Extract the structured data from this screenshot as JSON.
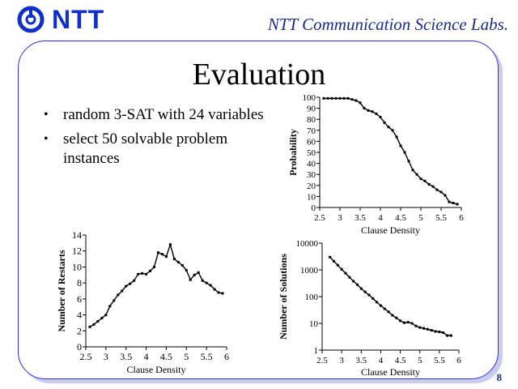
{
  "header": {
    "logo_text": "NTT",
    "lab_name": "NTT Communication Science Labs."
  },
  "slide": {
    "title": "Evaluation",
    "bullets": [
      "random 3-SAT with 24 variables",
      "select 50 solvable problem instances"
    ],
    "page_number": "8"
  },
  "colors": {
    "logo": "#1030c8",
    "frame": "#2b2ee8",
    "shadow": "#c9ccee",
    "series": "#000000"
  },
  "chart_data": [
    {
      "type": "line",
      "xlabel": "Clause Density",
      "ylabel": "Probability",
      "xlim": [
        2.5,
        6
      ],
      "ylim": [
        0,
        100
      ],
      "xticks": [
        "2.5",
        "3",
        "3.5",
        "4",
        "4.5",
        "5",
        "5.5",
        "6"
      ],
      "yticks": [
        "0",
        "10",
        "20",
        "30",
        "40",
        "50",
        "60",
        "70",
        "80",
        "90",
        "100"
      ],
      "grid": false,
      "series": [
        {
          "x": [
            2.6,
            2.7,
            2.8,
            2.9,
            3.0,
            3.1,
            3.2,
            3.3,
            3.4,
            3.5,
            3.6,
            3.7,
            3.8,
            3.9,
            4.0,
            4.1,
            4.2,
            4.3,
            4.4,
            4.5,
            4.6,
            4.7,
            4.8,
            4.9,
            5.0,
            5.1,
            5.2,
            5.3,
            5.4,
            5.5,
            5.6,
            5.7,
            5.8,
            5.9
          ],
          "values": [
            99,
            99,
            99,
            99,
            99,
            99,
            99,
            98,
            97,
            95,
            90,
            88,
            87,
            85,
            82,
            77,
            73,
            70,
            64,
            56,
            50,
            42,
            34,
            30,
            26,
            24,
            21,
            19,
            16,
            14,
            11,
            5,
            4,
            3
          ]
        }
      ]
    },
    {
      "type": "line",
      "xlabel": "Clause Density",
      "ylabel": "Number of Restarts",
      "xlim": [
        2.5,
        6
      ],
      "ylim": [
        0,
        14
      ],
      "xticks": [
        "2.5",
        "3",
        "3.5",
        "4",
        "4.5",
        "5",
        "5.5",
        "6"
      ],
      "yticks": [
        "0",
        "2",
        "4",
        "6",
        "8",
        "10",
        "12",
        "14"
      ],
      "grid": false,
      "series": [
        {
          "x": [
            2.6,
            2.7,
            2.8,
            2.9,
            3.0,
            3.1,
            3.2,
            3.3,
            3.4,
            3.5,
            3.6,
            3.7,
            3.8,
            3.9,
            4.0,
            4.1,
            4.2,
            4.3,
            4.4,
            4.5,
            4.6,
            4.7,
            4.8,
            4.9,
            5.0,
            5.1,
            5.2,
            5.3,
            5.4,
            5.5,
            5.6,
            5.7,
            5.8,
            5.9
          ],
          "values": [
            2.5,
            2.8,
            3.2,
            3.6,
            4.0,
            5.1,
            5.8,
            6.5,
            7.0,
            7.6,
            7.9,
            8.3,
            9.1,
            9.2,
            9.1,
            9.5,
            10.0,
            11.8,
            11.6,
            11.3,
            12.8,
            11.0,
            10.6,
            10.2,
            9.6,
            8.4,
            9.0,
            9.3,
            8.3,
            8.0,
            7.7,
            7.2,
            6.8,
            6.7
          ]
        }
      ]
    },
    {
      "type": "line",
      "xlabel": "Clause Density",
      "ylabel": "Number of Solutions",
      "xlim": [
        2.5,
        6
      ],
      "ylim": [
        1,
        10000
      ],
      "yscale": "log",
      "xticks": [
        "2.5",
        "3",
        "3.5",
        "4",
        "4.5",
        "5",
        "5.5",
        "6"
      ],
      "yticks": [
        "1",
        "10",
        "100",
        "1000",
        "10000"
      ],
      "grid": false,
      "series": [
        {
          "x": [
            2.7,
            2.8,
            2.9,
            3.0,
            3.1,
            3.2,
            3.3,
            3.4,
            3.5,
            3.6,
            3.7,
            3.8,
            3.9,
            4.0,
            4.1,
            4.2,
            4.3,
            4.4,
            4.5,
            4.6,
            4.7,
            4.8,
            4.9,
            5.0,
            5.1,
            5.2,
            5.3,
            5.4,
            5.5,
            5.6,
            5.7,
            5.8
          ],
          "values": [
            3000,
            2100,
            1500,
            1050,
            750,
            530,
            380,
            280,
            200,
            150,
            115,
            85,
            62,
            46,
            35,
            27,
            20,
            16,
            12.5,
            10.5,
            11,
            10,
            8,
            7,
            6.5,
            6,
            5.5,
            5,
            4.8,
            4.5,
            3.5,
            3.5
          ]
        }
      ]
    }
  ]
}
